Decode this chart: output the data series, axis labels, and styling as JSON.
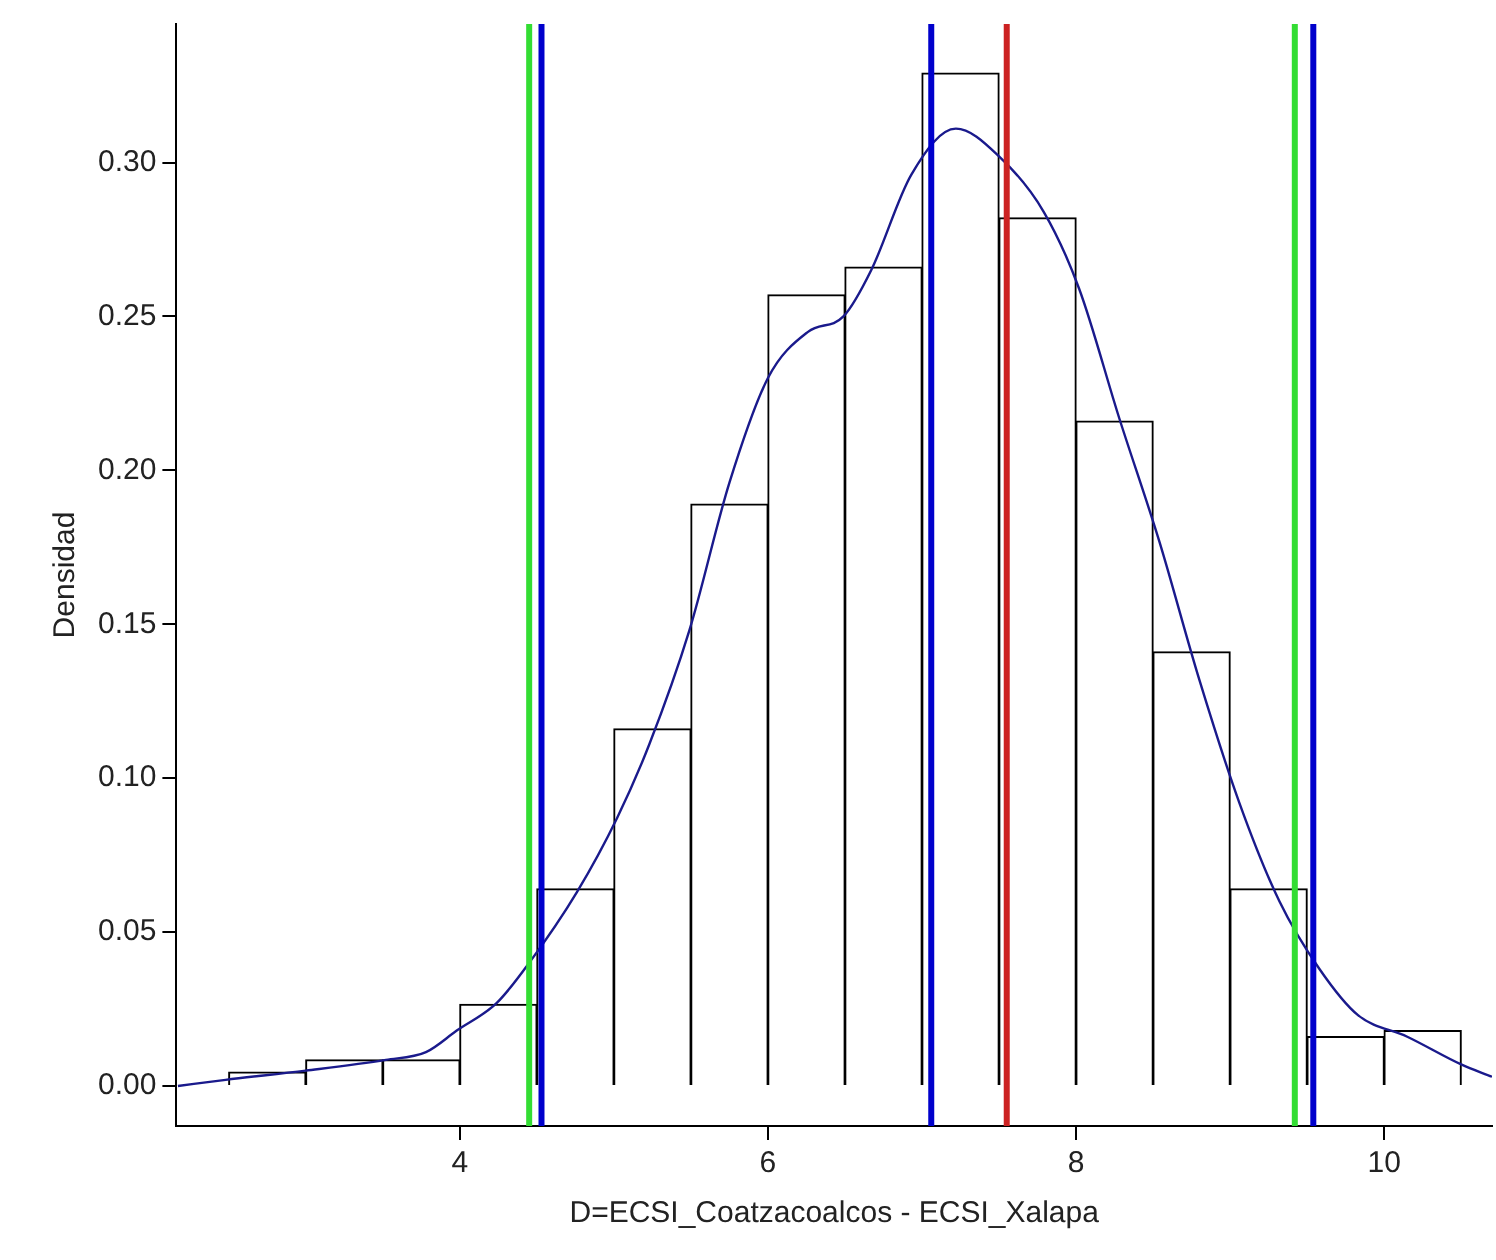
{
  "chart_data": {
    "type": "histogram",
    "xlabel": "D=ECSI_Coatzacoalcos - ECSI_Xalapa",
    "ylabel": "Densidad",
    "bins": [
      2.5,
      3,
      3.5,
      4,
      4.5,
      5,
      5.5,
      6,
      6.5,
      7,
      7.5,
      8,
      8.5,
      9,
      9.5,
      10,
      10.5
    ],
    "values": [
      0.0045,
      0.0085,
      0.0085,
      0.0265,
      0.064,
      0.116,
      0.189,
      0.257,
      0.266,
      0.329,
      0.282,
      0.216,
      0.141,
      0.064,
      0.016,
      0.018
    ],
    "color": "#ffffff",
    "series": [
      {
        "type": "line",
        "color": "#1a1a8c",
        "x": [
          2.17,
          2.48,
          3.0,
          3.52,
          3.78,
          3.98,
          4.24,
          4.45,
          4.76,
          5.02,
          5.23,
          5.49,
          5.75,
          6.0,
          6.26,
          6.49,
          6.67,
          6.93,
          7.22,
          7.5,
          7.79,
          8.02,
          8.28,
          8.54,
          8.8,
          9.06,
          9.32,
          9.58,
          9.83,
          10.15,
          10.5,
          10.7
        ],
        "values": [
          0,
          0.002,
          0.005,
          0.0085,
          0.011,
          0.018,
          0.027,
          0.04,
          0.063,
          0.087,
          0.111,
          0.148,
          0.196,
          0.23,
          0.245,
          0.25,
          0.265,
          0.296,
          0.311,
          0.302,
          0.284,
          0.259,
          0.217,
          0.177,
          0.132,
          0.092,
          0.06,
          0.038,
          0.023,
          0.016,
          0.007,
          0.003
        ]
      }
    ],
    "ref_lines": [
      {
        "axis": "x",
        "value": 4.45,
        "color": "#33dd33"
      },
      {
        "axis": "x",
        "value": 4.53,
        "color": "#0000cc"
      },
      {
        "axis": "x",
        "value": 7.06,
        "color": "#0000cc"
      },
      {
        "axis": "x",
        "value": 7.55,
        "color": "#cc2222"
      },
      {
        "axis": "x",
        "value": 9.42,
        "color": "#33dd33"
      },
      {
        "axis": "x",
        "value": 9.54,
        "color": "#0000cc"
      }
    ],
    "xlim": [
      2.16,
      10.7
    ],
    "ylim": [
      -0.013,
      0.345
    ],
    "xticks": [
      4,
      6,
      8,
      10
    ],
    "yticks": [
      {
        "value": 0,
        "label": "0.00"
      },
      0.05,
      {
        "value": 0.1,
        "label": "0.10"
      },
      0.15,
      {
        "value": 0.2,
        "label": "0.20"
      },
      0.25,
      {
        "value": 0.3,
        "label": "0.30"
      }
    ],
    "grid": false,
    "legend": false,
    "marker": "none"
  }
}
